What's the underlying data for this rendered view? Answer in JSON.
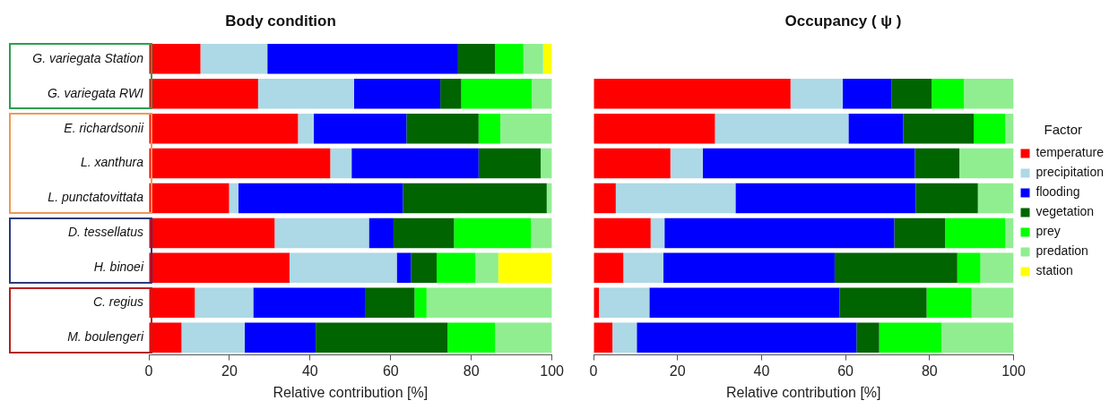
{
  "chart_data": [
    {
      "type": "bar",
      "title": "Body condition",
      "xlabel": "Relative contribution [%]",
      "orientation": "horizontal",
      "stacked": true,
      "categories": [
        "G. variegata Station",
        "G. variegata RWI",
        "E. richardsonii",
        "L. xanthura",
        "L. punctatovittata",
        "D. tessellatus",
        "H. binoei",
        "C. regius",
        "M. boulengeri"
      ],
      "xlim": [
        0,
        100
      ],
      "xticks": [
        0,
        20,
        40,
        60,
        80,
        100
      ],
      "grid": false,
      "series": [
        {
          "color": "#ff0000",
          "values": [
            12.8,
            27.1,
            37.0,
            45.0,
            19.9,
            31.2,
            34.9,
            11.4,
            8.1
          ]
        },
        {
          "color": "#add8e6",
          "values": [
            16.6,
            23.8,
            3.9,
            5.3,
            2.3,
            23.4,
            26.6,
            14.5,
            15.7
          ]
        },
        {
          "color": "#0000ff",
          "values": [
            47.3,
            21.4,
            23.0,
            31.5,
            40.8,
            6.1,
            3.5,
            27.7,
            17.6
          ]
        },
        {
          "color": "#006400",
          "values": [
            9.2,
            5.2,
            17.9,
            15.4,
            35.7,
            15.0,
            6.4,
            12.3,
            32.7
          ]
        },
        {
          "color": "#00ff00",
          "values": [
            7.0,
            17.5,
            5.4,
            0,
            0,
            19.1,
            9.6,
            3.0,
            11.8
          ]
        },
        {
          "color": "#90ee90",
          "values": [
            4.9,
            5.0,
            12.8,
            2.8,
            1.3,
            5.2,
            5.7,
            31.1,
            14.1
          ]
        },
        {
          "color": "#ffff00",
          "values": [
            2.2,
            0,
            0,
            0,
            0,
            0,
            13.3,
            0,
            0
          ]
        }
      ]
    },
    {
      "type": "bar",
      "title": "Occupancy ( ψ )",
      "xlabel": "Relative contribution [%]",
      "orientation": "horizontal",
      "stacked": true,
      "categories": [
        null,
        null,
        null,
        null,
        null,
        null,
        null,
        null,
        null
      ],
      "xlim": [
        0,
        100
      ],
      "xticks": [
        0,
        20,
        40,
        60,
        80,
        100
      ],
      "grid": false,
      "tick_labels": "x",
      "legend": "right",
      "legend_title": "Factor",
      "series": [
        {
          "name": "temperature",
          "color": "#ff0000",
          "values": [
            null,
            46.9,
            28.9,
            18.3,
            5.3,
            13.6,
            7.1,
            1.3,
            4.5
          ]
        },
        {
          "name": "precipitation",
          "color": "#add8e6",
          "values": [
            null,
            12.4,
            31.8,
            7.7,
            28.5,
            3.3,
            9.5,
            12.0,
            5.8
          ]
        },
        {
          "name": "flooding",
          "color": "#0000ff",
          "values": [
            null,
            11.7,
            13.0,
            50.5,
            42.9,
            54.7,
            40.8,
            45.3,
            52.3
          ]
        },
        {
          "name": "vegetation",
          "color": "#006400",
          "values": [
            null,
            9.5,
            16.8,
            10.6,
            14.8,
            12.1,
            29.2,
            20.7,
            5.4
          ]
        },
        {
          "name": "prey",
          "color": "#00ff00",
          "values": [
            null,
            7.7,
            7.5,
            0,
            0,
            14.3,
            5.5,
            10.7,
            14.8
          ]
        },
        {
          "name": "predation",
          "color": "#90ee90",
          "values": [
            null,
            11.8,
            2.0,
            12.9,
            8.5,
            2.0,
            7.9,
            10.0,
            17.2
          ]
        },
        {
          "name": "station",
          "color": "#ffff00",
          "values": [
            null,
            null,
            null,
            null,
            null,
            null,
            null,
            null,
            null
          ]
        }
      ]
    }
  ]
}
